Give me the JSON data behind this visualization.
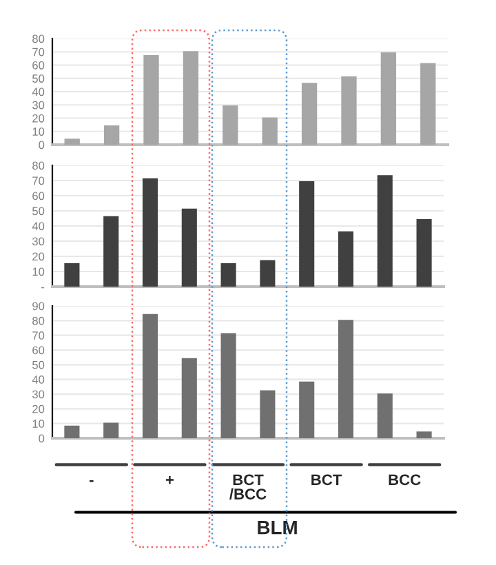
{
  "chart_data": [
    {
      "type": "bar",
      "categories": [
        null,
        null,
        null,
        null,
        null,
        null,
        null,
        null,
        null,
        null
      ],
      "values": [
        4,
        14,
        67,
        70,
        29,
        20,
        46,
        51,
        69,
        61
      ],
      "color": "#a6a6a6",
      "ylim": [
        0,
        80
      ],
      "yticks": [
        0,
        10,
        20,
        30,
        40,
        50,
        60,
        70,
        80
      ],
      "grid": "y",
      "tick_labels": "y"
    },
    {
      "type": "bar",
      "categories": [
        null,
        null,
        null,
        null,
        null,
        null,
        null,
        null,
        null,
        null
      ],
      "values": [
        15,
        46,
        71,
        51,
        15,
        17,
        69,
        36,
        73,
        44
      ],
      "color": "#404040",
      "ylim": [
        0,
        80
      ],
      "yticks": [
        {
          "value": 0,
          "label": "-"
        },
        10,
        20,
        30,
        40,
        50,
        60,
        70,
        80
      ],
      "grid": "y",
      "tick_labels": "y"
    },
    {
      "type": "bar",
      "categories": [
        null,
        null,
        null,
        null,
        null,
        null,
        null,
        null,
        null,
        null
      ],
      "values": [
        8,
        10,
        84,
        54,
        71,
        32,
        38,
        80,
        30,
        4
      ],
      "color": "#707070",
      "ylim": [
        0,
        90
      ],
      "yticks": [
        0,
        10,
        20,
        30,
        40,
        50,
        60,
        70,
        80,
        90
      ],
      "grid": "y",
      "tick_labels": "y",
      "annotations": [
        "-",
        "+",
        "BCT\n/BCC",
        "BCT",
        "BCC",
        "BLM"
      ]
    }
  ]
}
